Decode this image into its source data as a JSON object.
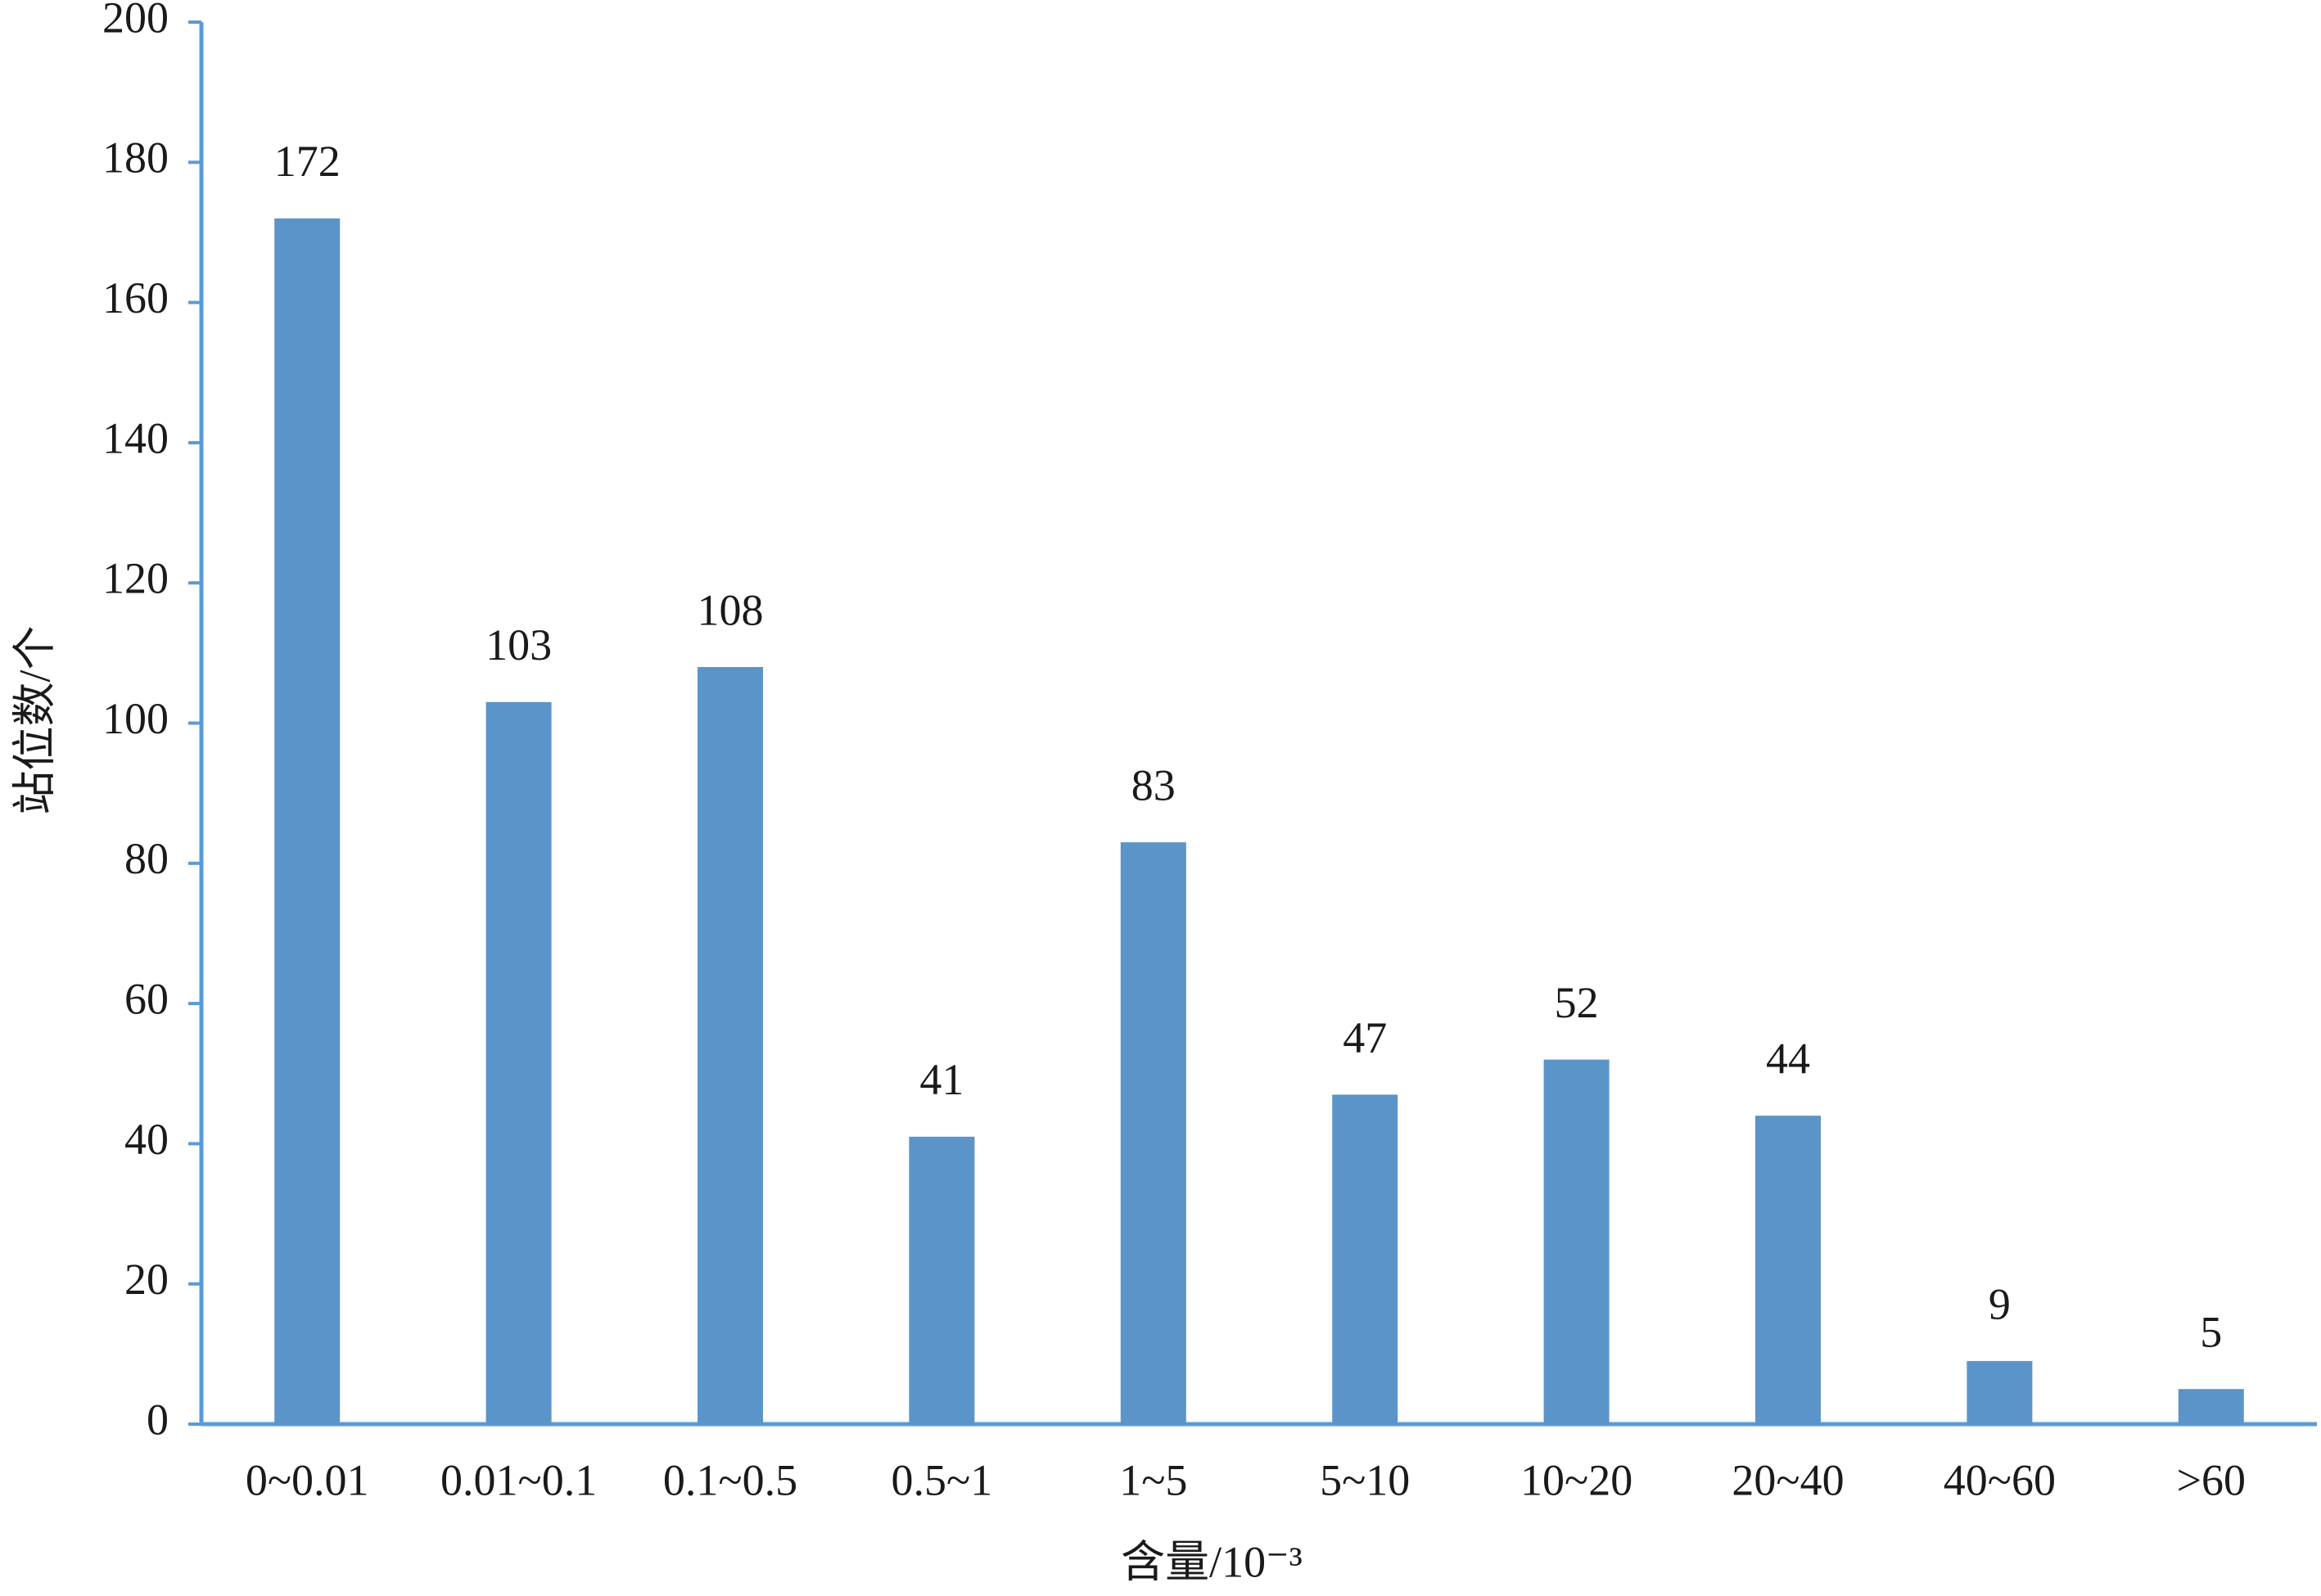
{
  "chart_data": {
    "type": "bar",
    "x_label": "含量/10⁻³",
    "y_label": "站位数/个",
    "categories": [
      "0~0.01",
      "0.01~0.1",
      "0.1~0.5",
      "0.5~1",
      "1~5",
      "5~10",
      "10~20",
      "20~40",
      "40~60",
      ">60"
    ],
    "values": [
      172,
      103,
      108,
      41,
      83,
      47,
      52,
      44,
      9,
      5
    ],
    "color": "#5b94c8",
    "axis_color": "#5b9bd5",
    "ylim": [
      0,
      200
    ],
    "yticks": [
      0,
      20,
      40,
      60,
      80,
      100,
      120,
      140,
      160,
      180,
      200
    ],
    "grid": false
  }
}
